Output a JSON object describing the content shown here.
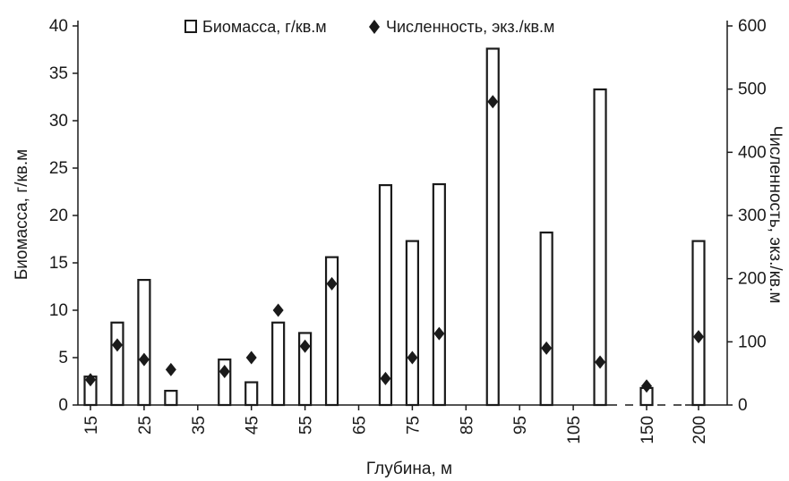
{
  "chart_data": {
    "type": "bar",
    "x_tick_labels": [
      "15",
      "25",
      "35",
      "45",
      "55",
      "65",
      "75",
      "85",
      "95",
      "105",
      "150",
      "200"
    ],
    "xlabel": "Глубина, м",
    "ylabel_left": "Биомасса, г/кв.м",
    "ylabel_right": "Численность, экз./кв.м",
    "ylim_left": [
      0,
      40
    ],
    "ylim_right": [
      0,
      600
    ],
    "yticks_left": [
      "0",
      "5",
      "10",
      "15",
      "20",
      "25",
      "30",
      "35",
      "40"
    ],
    "yticks_right": [
      "0",
      "100",
      "200",
      "300",
      "400",
      "500",
      "600"
    ],
    "depths": [
      15,
      20,
      25,
      30,
      40,
      45,
      50,
      55,
      60,
      70,
      75,
      80,
      90,
      100,
      110,
      150,
      200
    ],
    "legend": {
      "placement": "top-center",
      "biomass_label": "Биомасса, г/кв.м",
      "abundance_label": "Численность, экз./кв.м"
    },
    "series": [
      {
        "name": "Биомасса, г/кв.м",
        "axis": "left",
        "style": "hollow-bar",
        "values": [
          3.0,
          8.7,
          13.2,
          1.5,
          4.8,
          2.4,
          8.7,
          7.6,
          15.6,
          23.2,
          17.3,
          23.3,
          37.6,
          18.2,
          33.3,
          1.8,
          17.3
        ]
      },
      {
        "name": "Численность, экз./кв.м",
        "axis": "right",
        "style": "diamond-marker",
        "values": [
          40,
          95,
          72,
          56,
          53,
          75,
          150,
          93,
          192,
          42,
          75,
          113,
          480,
          90,
          68,
          30,
          108
        ]
      }
    ],
    "grid": false,
    "colors": {
      "bar_stroke": "#1a1a1a",
      "bar_fill": "#ffffff",
      "marker": "#1a1a1a",
      "axis": "#1a1a1a"
    }
  }
}
